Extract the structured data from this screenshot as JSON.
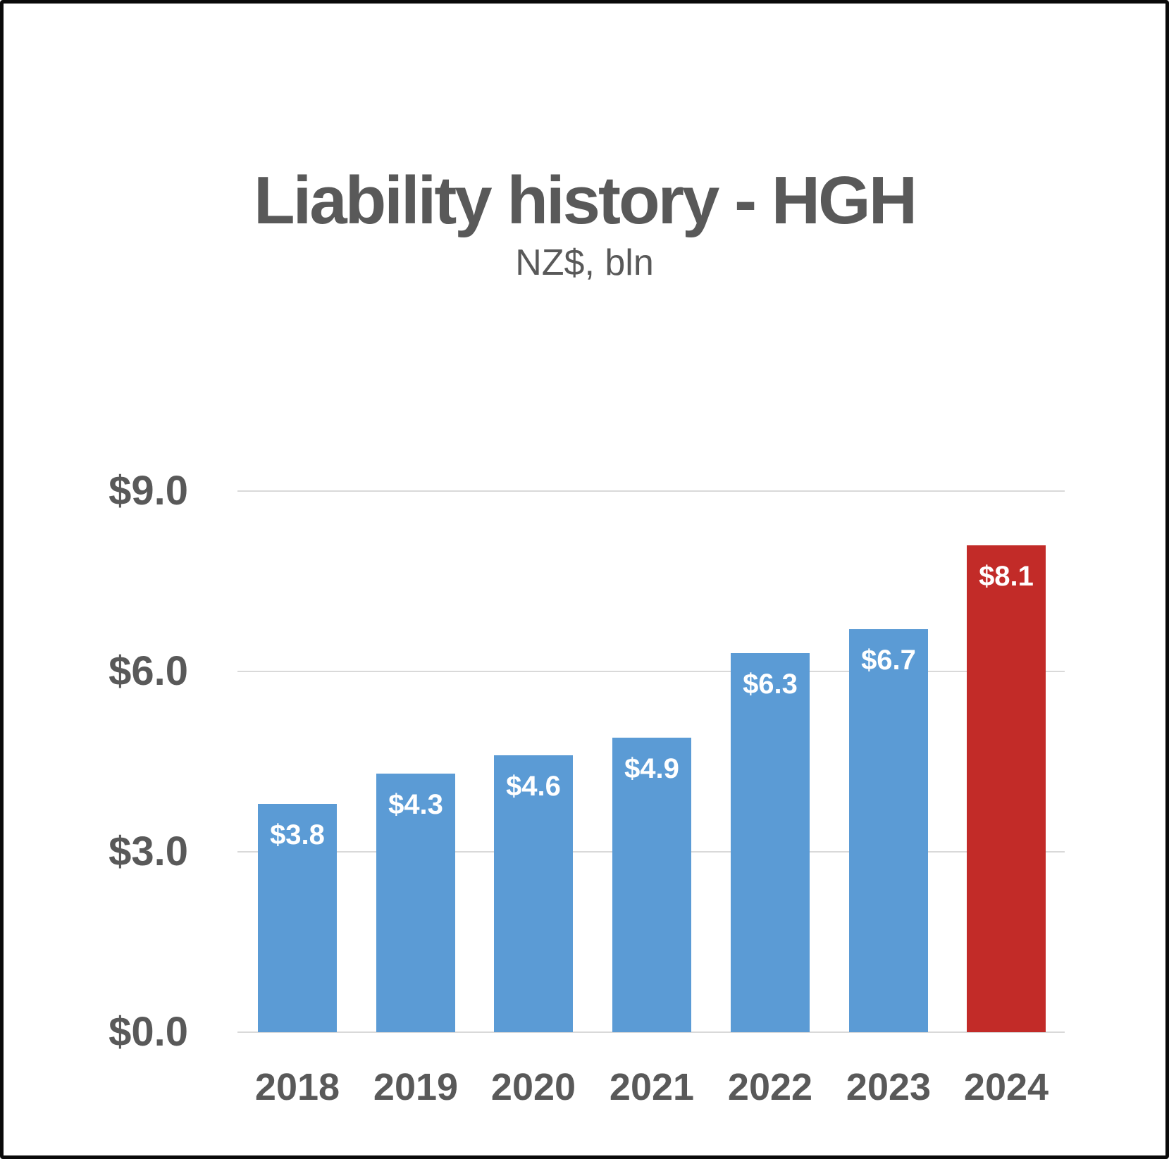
{
  "title": "Liability history - HGH",
  "subtitle": "NZ$, bln",
  "colors": {
    "bar_default": "#5B9BD5",
    "bar_highlight": "#C22B28",
    "text": "#595959",
    "gridline": "#D9D9D9",
    "value_label": "#FFFFFF",
    "frame": "#0A0A0A"
  },
  "chart_data": {
    "type": "bar",
    "title": "Liability history - HGH",
    "subtitle": "NZ$, bln",
    "categories": [
      "2018",
      "2019",
      "2020",
      "2021",
      "2022",
      "2023",
      "2024"
    ],
    "values": [
      3.8,
      4.3,
      4.6,
      4.9,
      6.3,
      6.7,
      8.1
    ],
    "value_labels": [
      "$3.8",
      "$4.3",
      "$4.6",
      "$4.9",
      "$6.3",
      "$6.7",
      "$8.1"
    ],
    "highlight_category": "2024",
    "ylabel": "NZ$, bln",
    "xlabel": "",
    "ylim": [
      0,
      9
    ],
    "yticks": [
      {
        "value": 0,
        "label": "$0.0"
      },
      {
        "value": 3,
        "label": "$3.0"
      },
      {
        "value": 6,
        "label": "$6.0"
      },
      {
        "value": 9,
        "label": "$9.0"
      }
    ],
    "grid": true,
    "legend": false
  }
}
